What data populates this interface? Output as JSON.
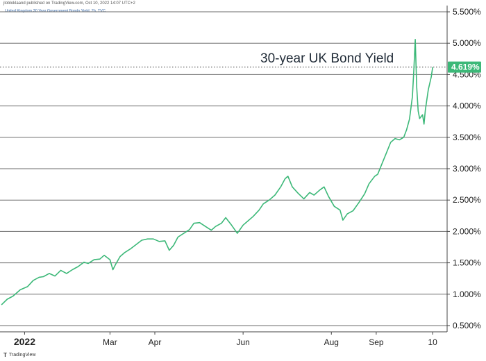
{
  "header": {
    "published": "jlobloklaand published on TradingView.com, Oct 10, 2022 14:07 UTC+2",
    "symbol": "United Kingdom 30 Year Government Bonds Yield, 2h, TVC"
  },
  "footer": {
    "brand": "TradingView"
  },
  "colors": {
    "line": "#3cb878",
    "grid": "#6b6b6b",
    "badge": "#3cb878",
    "dotted": "#333333"
  },
  "chart_data": {
    "type": "line",
    "title": "30-year UK Bond Yield",
    "last_value_label": "4.619%",
    "last_value": 4.619,
    "ylim": [
      0.4,
      5.6
    ],
    "y_ticks": [
      {
        "value": 0.5,
        "label": "0.500%"
      },
      {
        "value": 1.0,
        "label": "1.000%"
      },
      {
        "value": 1.5,
        "label": "1.500%"
      },
      {
        "value": 2.0,
        "label": "2.000%"
      },
      {
        "value": 2.5,
        "label": "2.500%"
      },
      {
        "value": 3.0,
        "label": "3.000%"
      },
      {
        "value": 3.5,
        "label": "3.500%"
      },
      {
        "value": 4.0,
        "label": "4.000%"
      },
      {
        "value": 4.5,
        "label": "4.500%"
      },
      {
        "value": 5.0,
        "label": "5.000%"
      },
      {
        "value": 5.5,
        "label": "5.500%"
      }
    ],
    "x_ticks": [
      {
        "date": "2022-01-01",
        "label": "2022",
        "bold": true
      },
      {
        "date": "2022-03-01",
        "label": "Mar",
        "bold": false
      },
      {
        "date": "2022-04-01",
        "label": "Apr",
        "bold": false
      },
      {
        "date": "2022-06-01",
        "label": "Jun",
        "bold": false
      },
      {
        "date": "2022-08-01",
        "label": "Aug",
        "bold": false
      },
      {
        "date": "2022-09-01",
        "label": "Sep",
        "bold": false
      },
      {
        "date": "2022-10-10",
        "label": "10",
        "bold": false
      }
    ],
    "xlim": [
      "2021-12-15",
      "2022-10-20"
    ],
    "series": [
      {
        "points": [
          [
            "2021-12-16",
            0.83
          ],
          [
            "2021-12-20",
            0.92
          ],
          [
            "2021-12-24",
            0.97
          ],
          [
            "2021-12-29",
            1.07
          ],
          [
            "2022-01-03",
            1.12
          ],
          [
            "2022-01-07",
            1.22
          ],
          [
            "2022-01-11",
            1.27
          ],
          [
            "2022-01-14",
            1.28
          ],
          [
            "2022-01-18",
            1.33
          ],
          [
            "2022-01-22",
            1.29
          ],
          [
            "2022-01-26",
            1.38
          ],
          [
            "2022-01-30",
            1.33
          ],
          [
            "2022-02-03",
            1.39
          ],
          [
            "2022-02-07",
            1.44
          ],
          [
            "2022-02-11",
            1.51
          ],
          [
            "2022-02-14",
            1.49
          ],
          [
            "2022-02-18",
            1.55
          ],
          [
            "2022-02-22",
            1.56
          ],
          [
            "2022-02-25",
            1.62
          ],
          [
            "2022-03-01",
            1.55
          ],
          [
            "2022-03-03",
            1.39
          ],
          [
            "2022-03-05",
            1.48
          ],
          [
            "2022-03-08",
            1.6
          ],
          [
            "2022-03-11",
            1.66
          ],
          [
            "2022-03-15",
            1.72
          ],
          [
            "2022-03-19",
            1.79
          ],
          [
            "2022-03-23",
            1.86
          ],
          [
            "2022-03-27",
            1.88
          ],
          [
            "2022-03-31",
            1.88
          ],
          [
            "2022-04-04",
            1.84
          ],
          [
            "2022-04-08",
            1.85
          ],
          [
            "2022-04-11",
            1.7
          ],
          [
            "2022-04-14",
            1.78
          ],
          [
            "2022-04-17",
            1.91
          ],
          [
            "2022-04-21",
            1.97
          ],
          [
            "2022-04-25",
            2.03
          ],
          [
            "2022-04-28",
            2.13
          ],
          [
            "2022-05-02",
            2.14
          ],
          [
            "2022-05-06",
            2.08
          ],
          [
            "2022-05-10",
            2.02
          ],
          [
            "2022-05-13",
            2.08
          ],
          [
            "2022-05-17",
            2.13
          ],
          [
            "2022-05-20",
            2.22
          ],
          [
            "2022-05-24",
            2.1
          ],
          [
            "2022-05-28",
            1.97
          ],
          [
            "2022-06-01",
            2.1
          ],
          [
            "2022-06-04",
            2.16
          ],
          [
            "2022-06-08",
            2.24
          ],
          [
            "2022-06-12",
            2.34
          ],
          [
            "2022-06-15",
            2.44
          ],
          [
            "2022-06-19",
            2.5
          ],
          [
            "2022-06-23",
            2.58
          ],
          [
            "2022-06-27",
            2.71
          ],
          [
            "2022-06-30",
            2.84
          ],
          [
            "2022-07-02",
            2.88
          ],
          [
            "2022-07-05",
            2.71
          ],
          [
            "2022-07-09",
            2.61
          ],
          [
            "2022-07-13",
            2.52
          ],
          [
            "2022-07-17",
            2.62
          ],
          [
            "2022-07-20",
            2.58
          ],
          [
            "2022-07-24",
            2.66
          ],
          [
            "2022-07-27",
            2.71
          ],
          [
            "2022-07-30",
            2.56
          ],
          [
            "2022-08-03",
            2.4
          ],
          [
            "2022-08-07",
            2.34
          ],
          [
            "2022-08-09",
            2.18
          ],
          [
            "2022-08-12",
            2.28
          ],
          [
            "2022-08-16",
            2.33
          ],
          [
            "2022-08-20",
            2.46
          ],
          [
            "2022-08-24",
            2.6
          ],
          [
            "2022-08-27",
            2.76
          ],
          [
            "2022-08-31",
            2.88
          ],
          [
            "2022-09-02",
            2.91
          ],
          [
            "2022-09-05",
            3.08
          ],
          [
            "2022-09-08",
            3.25
          ],
          [
            "2022-09-11",
            3.42
          ],
          [
            "2022-09-14",
            3.48
          ],
          [
            "2022-09-17",
            3.46
          ],
          [
            "2022-09-20",
            3.5
          ],
          [
            "2022-09-22",
            3.62
          ],
          [
            "2022-09-24",
            3.79
          ],
          [
            "2022-09-26",
            4.15
          ],
          [
            "2022-09-27",
            4.58
          ],
          [
            "2022-09-28",
            5.06
          ],
          [
            "2022-09-29",
            4.3
          ],
          [
            "2022-09-30",
            3.92
          ],
          [
            "2022-10-01",
            3.8
          ],
          [
            "2022-10-03",
            3.86
          ],
          [
            "2022-10-04",
            3.71
          ],
          [
            "2022-10-05",
            3.94
          ],
          [
            "2022-10-07",
            4.26
          ],
          [
            "2022-10-09",
            4.46
          ],
          [
            "2022-10-10",
            4.619
          ]
        ]
      }
    ]
  }
}
